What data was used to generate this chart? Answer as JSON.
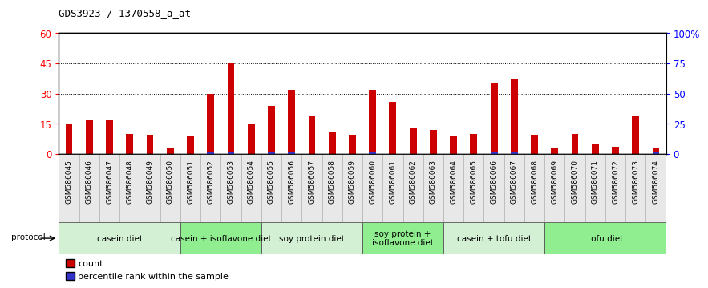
{
  "title": "GDS3923 / 1370558_a_at",
  "samples": [
    "GSM586045",
    "GSM586046",
    "GSM586047",
    "GSM586048",
    "GSM586049",
    "GSM586050",
    "GSM586051",
    "GSM586052",
    "GSM586053",
    "GSM586054",
    "GSM586055",
    "GSM586056",
    "GSM586057",
    "GSM586058",
    "GSM586059",
    "GSM586060",
    "GSM586061",
    "GSM586062",
    "GSM586063",
    "GSM586064",
    "GSM586065",
    "GSM586066",
    "GSM586067",
    "GSM586068",
    "GSM586069",
    "GSM586070",
    "GSM586071",
    "GSM586072",
    "GSM586073",
    "GSM586074"
  ],
  "counts": [
    14.5,
    17.0,
    17.0,
    10.0,
    9.5,
    3.0,
    8.5,
    30.0,
    45.0,
    15.0,
    24.0,
    32.0,
    19.0,
    10.5,
    9.5,
    32.0,
    26.0,
    13.0,
    12.0,
    9.0,
    10.0,
    35.0,
    37.0,
    9.5,
    3.0,
    10.0,
    4.5,
    3.5,
    19.0,
    3.0
  ],
  "percentile": [
    0,
    0,
    0,
    0,
    0,
    0,
    0,
    2,
    2,
    0,
    2,
    2,
    0,
    0,
    0,
    2,
    0,
    0,
    0,
    0,
    0,
    2,
    2,
    0,
    0,
    0,
    0,
    0,
    0,
    2
  ],
  "groups": [
    {
      "label": "casein diet",
      "start": 0,
      "end": 6
    },
    {
      "label": "casein + isoflavone diet",
      "start": 6,
      "end": 10
    },
    {
      "label": "soy protein diet",
      "start": 10,
      "end": 15
    },
    {
      "label": "soy protein +\nisoflavone diet",
      "start": 15,
      "end": 19
    },
    {
      "label": "casein + tofu diet",
      "start": 19,
      "end": 24
    },
    {
      "label": "tofu diet",
      "start": 24,
      "end": 30
    }
  ],
  "group_colors": [
    "#d4f0d4",
    "#90EE90",
    "#d4f0d4",
    "#90EE90",
    "#d4f0d4",
    "#90EE90"
  ],
  "ylim_left": [
    0,
    60
  ],
  "ylim_right": [
    0,
    100
  ],
  "yticks_left": [
    0,
    15,
    30,
    45,
    60
  ],
  "yticks_right": [
    0,
    25,
    50,
    75,
    100
  ],
  "ytick_labels_right": [
    "0",
    "25",
    "50",
    "75",
    "100%"
  ],
  "bar_color": "#CC0000",
  "percentile_color": "#3333CC",
  "bg_color": "#FFFFFF",
  "plot_bg": "#FFFFFF",
  "title_fontsize": 9,
  "tick_label_fontsize": 6.5,
  "group_label_fontsize": 7.5,
  "legend_fontsize": 8
}
